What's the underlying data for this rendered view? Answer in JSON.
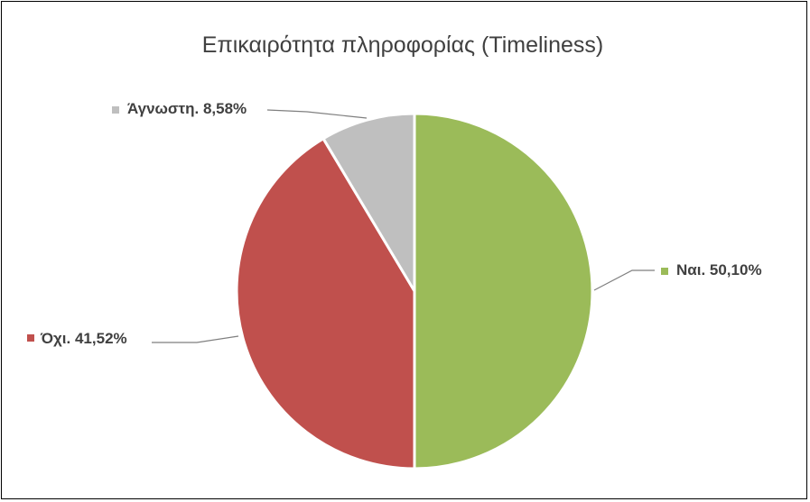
{
  "chart_data": {
    "type": "pie",
    "title": "Επικαιρότητα πληροφορίας (Timeliness)",
    "slices": [
      {
        "label": "Ναι",
        "value": 50.1,
        "display": "Ναι. 50,10%",
        "color": "#9bbb59"
      },
      {
        "label": "Όχι",
        "value": 41.52,
        "display": "Όχι. 41,52%",
        "color": "#c0504d"
      },
      {
        "label": "Άγνωστη",
        "value": 8.58,
        "display": "Άγνωστη. 8,58%",
        "color": "#bfbfbf"
      }
    ],
    "start_angle": "12 o'clock",
    "direction": "clockwise",
    "legend": "none (labels beside slices with leader lines)"
  }
}
